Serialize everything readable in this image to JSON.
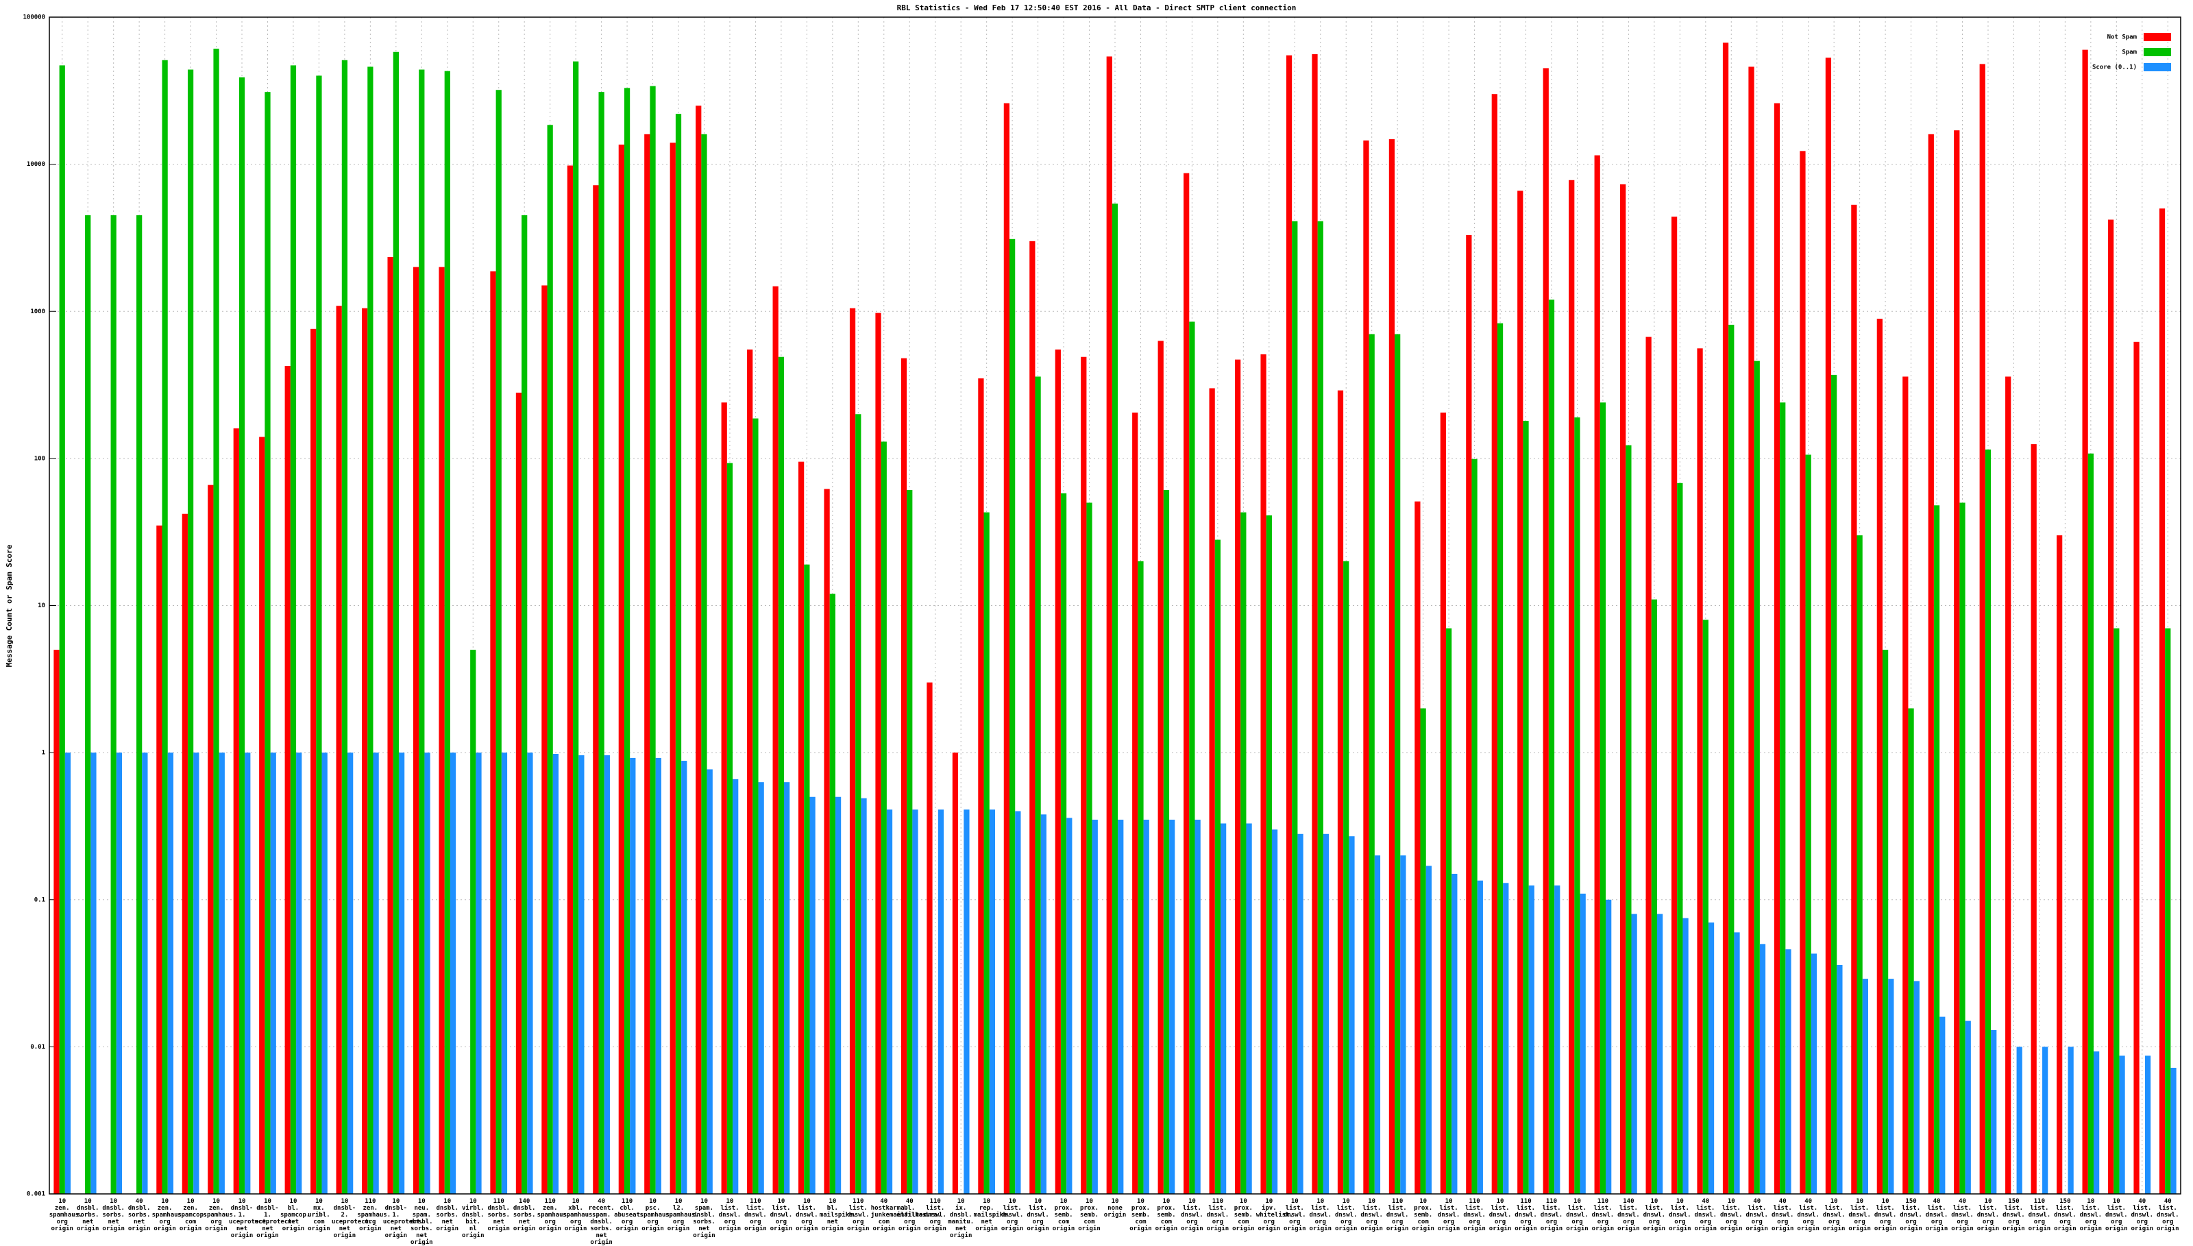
{
  "chart_data": {
    "type": "bar",
    "title": "RBL Statistics - Wed Feb 17 12:50:40 EST 2016 - All Data - Direct SMTP client connection",
    "y_label": "Message Count or Spam Score",
    "log_scale": true,
    "grid": true,
    "legend": "top-right",
    "ylim": [
      0.001,
      100000
    ],
    "yticks": [
      0.001,
      0.01,
      0.1,
      1,
      10,
      100,
      1000,
      10000,
      100000
    ],
    "categories": [
      "10\nzen.\nspamhaus.\norg\norigin",
      "10\ndnsbl.\nsorbs.\nnet\norigin",
      "10\ndnsbl.\nsorbs.\nnet\norigin",
      "40\ndnsbl.\nsorbs.\nnet\norigin",
      "10\nzen.\nspamhaus.\norg\norigin",
      "10\nzen.\nspamcop.\ncom\norigin",
      "10\nzen.\nspamhaus.\norg\norigin",
      "10\ndnsbl-1.\nuceprotect.\nnet\norigin",
      "10\ndnsbl-1.\nuceprotect.\nnet\norigin",
      "10\nbl.\nspamcop.\nnet\norigin",
      "10\nmx.\nuribl.\ncom\norigin",
      "10\ndnsbl-2.\nuceprotect.\nnet\norigin",
      "110\nzen.\nspamhaus.\norg\norigin",
      "10\ndnsbl-1.\nuceprotect.\nnet\norigin",
      "10\nneu.\nspam.\ndnsbl.\nsorbs.\nnet\norigin",
      "10\ndnsbl.\nsorbs.\nnet\norigin",
      "10\nvirbl.\ndnsbl.\nbit.\nnl\norigin",
      "110\ndnsbl.\nsorbs.\nnet\norigin",
      "140\ndnsbl.\nsorbs.\nnet\norigin",
      "110\nzen.\nspamhaus.\norg\norigin",
      "10\nxbl.\nspamhaus.\norg\norigin",
      "40\nrecent.\nspam.\ndnsbl.\nsorbs.\nnet\norigin",
      "110\ncbl.\nabuseat.\norg\norigin",
      "10\npsc.\nspamhaus.\norg\norigin",
      "10\nl2.\nspamhaus.\norg\norigin",
      "10\nspam.\ndnsbl.\nsorbs.\nnet\norigin",
      "10\nlist.\ndnswl.\norg\norigin",
      "110\nlist.\ndnswl.\norg\norigin",
      "10\nlist.\ndnswl.\norg\norigin",
      "10\nlist.\ndnswl.\norg\norigin",
      "10\nbl.\nmailspike.\nnet\norigin",
      "110\nlist.\ndnswl.\norg\norigin",
      "40\nhostkarma.\njunkemailfilter.\ncom\norigin",
      "40\nbl.\nemailbasura.\norg\norigin",
      "110\nlist.\ndnswl.\norg\norigin",
      "10\nix.\ndnsbl.\nmanitu.\nnet\norigin",
      "10\nrep.\nmailspike.\nnet\norigin",
      "10\nlist.\ndnswl.\norg\norigin",
      "10\nlist.\ndnswl.\norg\norigin",
      "10\nprox.\nsemb.\ncom\norigin",
      "10\nprox.\nsemb.\ncom\norigin",
      "10\nnone\norigin",
      "10\nprox.\nsemb.\ncom\norigin",
      "10\nprox.\nsemb.\ncom\norigin",
      "10\nlist.\ndnswl.\norg\norigin",
      "110\nlist.\ndnswl.\norg\norigin",
      "10\nprox.\nsemb.\ncom\norigin",
      "10\nipv.\nwhitelist.\norg\norigin",
      "10\nlist.\ndnswl.\norg\norigin",
      "10\nlist.\ndnswl.\norg\norigin",
      "10\nlist.\ndnswl.\norg\norigin",
      "10\nlist.\ndnswl.\norg\norigin",
      "110\nlist.\ndnswl.\norg\norigin",
      "10\nprox.\nsemb.\ncom\norigin",
      "10\nlist.\ndnswl.\norg\norigin",
      "110\nlist.\ndnswl.\norg\norigin",
      "10\nlist.\ndnswl.\norg\norigin",
      "110\nlist.\ndnswl.\norg\norigin",
      "110\nlist.\ndnswl.\norg\norigin",
      "10\nlist.\ndnswl.\norg\norigin",
      "110\nlist.\ndnswl.\norg\norigin",
      "140\nlist.\ndnswl.\norg\norigin",
      "10\nlist.\ndnswl.\norg\norigin",
      "10\nlist.\ndnswl.\norg\norigin",
      "40\nlist.\ndnswl.\norg\norigin",
      "10\nlist.\ndnswl.\norg\norigin",
      "40\nlist.\ndnswl.\norg\norigin",
      "40\nlist.\ndnswl.\norg\norigin",
      "40\nlist.\ndnswl.\norg\norigin",
      "10\nlist.\ndnswl.\norg\norigin",
      "10\nlist.\ndnswl.\norg\norigin",
      "10\nlist.\ndnswl.\norg\norigin",
      "150\nlist.\ndnswl.\norg\norigin",
      "40\nlist.\ndnswl.\norg\norigin",
      "40\nlist.\ndnswl.\norg\norigin",
      "10\nlist.\ndnswl.\norg\norigin",
      "150\nlist.\ndnswl.\norg\norigin",
      "110\nlist.\ndnswl.\norg\norigin",
      "150\nlist.\ndnswl.\norg\norigin",
      "10\nlist.\ndnswl.\norg\norigin",
      "10\nlist.\ndnswl.\norg\norigin",
      "40\nlist.\ndnswl.\norg\norigin",
      "40\nlist.\ndnswl.\norg\norigin"
    ],
    "series": [
      {
        "name": "Not Spam",
        "color": "#ff0000",
        "values": [
          5,
          null,
          null,
          null,
          35,
          42,
          66,
          160,
          140,
          425,
          760,
          1090,
          1050,
          2340,
          2000,
          2000,
          null,
          1870,
          280,
          1500,
          9800,
          7200,
          13600,
          16000,
          14000,
          25000,
          240,
          550,
          1480,
          95,
          62,
          1050,
          975,
          480,
          3,
          1,
          350,
          26000,
          3000,
          550,
          490,
          54000,
          205,
          630,
          8700,
          300,
          470,
          510,
          55000,
          56000,
          290,
          14500,
          14800,
          51,
          205,
          3300,
          30000,
          6600,
          45000,
          7800,
          11500,
          7300,
          670,
          4400,
          560,
          67000,
          46000,
          26000,
          12300,
          53000,
          5300,
          890,
          360,
          16000,
          17000,
          48000,
          360,
          125,
          30,
          60000,
          4200,
          620,
          5000
        ]
      },
      {
        "name": "Spam",
        "color": "#00c000",
        "values": [
          47000,
          4500,
          4500,
          4500,
          51000,
          44000,
          61000,
          39000,
          31000,
          47000,
          40000,
          51000,
          46000,
          58000,
          44000,
          43000,
          5,
          32000,
          4500,
          18500,
          50000,
          31000,
          33000,
          34000,
          22000,
          16000,
          93,
          187,
          490,
          19,
          12,
          200,
          130,
          61,
          null,
          null,
          43,
          3100,
          360,
          58,
          50,
          5400,
          20,
          61,
          850,
          28,
          43,
          41,
          4100,
          4100,
          20,
          700,
          700,
          2,
          7,
          99,
          830,
          180,
          1200,
          190,
          240,
          123,
          11,
          68,
          8,
          810,
          460,
          240,
          106,
          370,
          30,
          5,
          2,
          48,
          50,
          115,
          null,
          null,
          null,
          108,
          7,
          null,
          7
        ]
      },
      {
        "name": "Score (0..1)",
        "color": "#1e90ff",
        "values": [
          1,
          1,
          1,
          1,
          1,
          1,
          1,
          1,
          1,
          1,
          1,
          1,
          1,
          1,
          1,
          1,
          1,
          1,
          1,
          0.98,
          0.96,
          0.96,
          0.92,
          0.92,
          0.88,
          0.77,
          0.66,
          0.63,
          0.63,
          0.5,
          0.5,
          0.49,
          0.41,
          0.41,
          0.41,
          0.41,
          0.41,
          0.4,
          0.38,
          0.36,
          0.35,
          0.35,
          0.35,
          0.35,
          0.35,
          0.33,
          0.33,
          0.3,
          0.28,
          0.28,
          0.27,
          0.2,
          0.2,
          0.17,
          0.15,
          0.135,
          0.13,
          0.125,
          0.125,
          0.11,
          0.1,
          0.08,
          0.08,
          0.075,
          0.07,
          0.06,
          0.05,
          0.046,
          0.043,
          0.036,
          0.029,
          0.029,
          0.028,
          0.016,
          0.015,
          0.013,
          0.01,
          0.01,
          0.01,
          0.0093,
          0.0087,
          0.0087,
          0.0072
        ]
      }
    ]
  }
}
